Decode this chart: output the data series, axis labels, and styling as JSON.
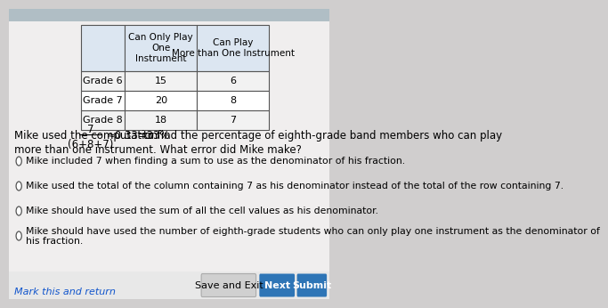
{
  "bg_color": "#d0cece",
  "content_bg": "#f0eeee",
  "table": {
    "col_headers": [
      "",
      "Can Only Play\nOne\nInstrument",
      "Can Play\nMore than One Instrument"
    ],
    "rows": [
      [
        "Grade 6",
        "15",
        "6"
      ],
      [
        "Grade 7",
        "20",
        "8"
      ],
      [
        "Grade 8",
        "18",
        "7"
      ]
    ]
  },
  "computation_text": "Mike used the computation",
  "fraction_numerator": "7",
  "fraction_denominator": "(6+8+7)",
  "approx_text": "≈0.33=33%",
  "purpose_text": "to find the percentage of eighth-grade band members who can play",
  "line2_text": "more than one instrument. What error did Mike make?",
  "options": [
    "Mike included 7 when finding a sum to use as the denominator of his fraction.",
    "Mike used the total of the column containing 7 as his denominator instead of the total of the row containing 7.",
    "Mike should have used the sum of all the cell values as his denominator.",
    "Mike should have used the number of eighth-grade students who can only play one instrument as the denominator of\nhis fraction."
  ],
  "button_save_exit": "Save and Exit",
  "button_next": "Next",
  "button_submit": "Submit",
  "mark_text": "Mark this and return",
  "next_button_color": "#2e75b6",
  "submit_button_color": "#2e75b6"
}
